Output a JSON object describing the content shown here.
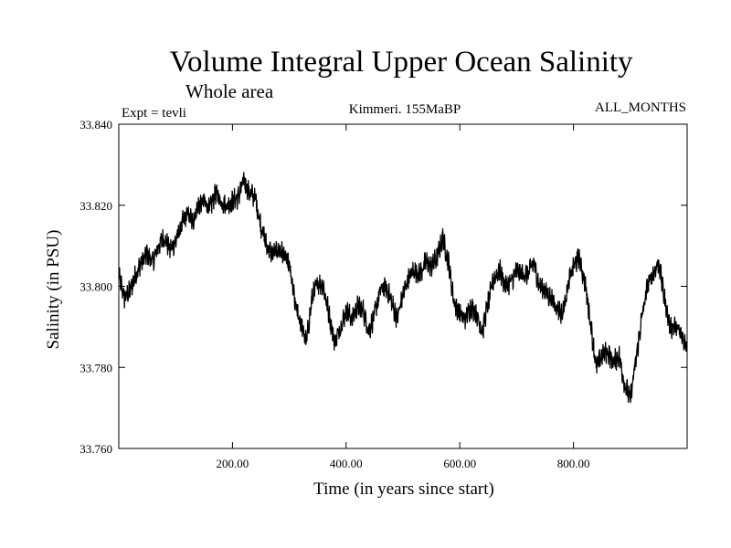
{
  "chart_data": {
    "type": "line",
    "title": "Volume Integral Upper Ocean Salinity",
    "subtitle": "Whole area",
    "header_left": "Expt = tevli",
    "header_center": "Kimmeri. 155MaBP",
    "header_right": "ALL_MONTHS",
    "xlabel": "Time (in years since start)",
    "ylabel": "Salinity (in PSU)",
    "xlim": [
      0,
      1000
    ],
    "ylim": [
      33.76,
      33.84
    ],
    "x_ticks": [
      {
        "value": 200,
        "label": "200.00"
      },
      {
        "value": 400,
        "label": "400.00"
      },
      {
        "value": 600,
        "label": "600.00"
      },
      {
        "value": 800,
        "label": "800.00"
      }
    ],
    "y_ticks": [
      {
        "value": 33.76,
        "label": "33.760"
      },
      {
        "value": 33.78,
        "label": "33.780"
      },
      {
        "value": 33.8,
        "label": "33.800"
      },
      {
        "value": 33.82,
        "label": "33.820"
      },
      {
        "value": 33.84,
        "label": "33.840"
      }
    ],
    "grid": false,
    "series": [
      {
        "name": "salinity",
        "color": "#000000",
        "x": [
          0,
          10,
          20,
          30,
          40,
          50,
          60,
          70,
          80,
          90,
          100,
          110,
          120,
          130,
          140,
          150,
          160,
          170,
          180,
          190,
          200,
          210,
          220,
          230,
          240,
          250,
          260,
          270,
          280,
          290,
          300,
          310,
          320,
          330,
          340,
          350,
          360,
          370,
          380,
          390,
          400,
          410,
          420,
          430,
          440,
          450,
          460,
          470,
          480,
          490,
          500,
          510,
          520,
          530,
          540,
          550,
          560,
          570,
          580,
          590,
          600,
          610,
          620,
          630,
          640,
          650,
          660,
          670,
          680,
          690,
          700,
          710,
          720,
          730,
          740,
          750,
          760,
          770,
          780,
          790,
          800,
          810,
          820,
          830,
          840,
          850,
          860,
          870,
          880,
          890,
          900,
          910,
          920,
          930,
          940,
          950,
          960,
          970,
          980,
          990,
          1000
        ],
        "values": [
          33.803,
          33.797,
          33.799,
          33.803,
          33.806,
          33.808,
          33.806,
          33.81,
          33.812,
          33.809,
          33.811,
          33.815,
          33.818,
          33.816,
          33.82,
          33.821,
          33.819,
          33.823,
          33.821,
          33.82,
          33.821,
          33.822,
          33.826,
          33.823,
          33.822,
          33.815,
          33.81,
          33.808,
          33.809,
          33.808,
          33.805,
          33.796,
          33.791,
          33.786,
          33.797,
          33.801,
          33.8,
          33.793,
          33.786,
          33.79,
          33.794,
          33.792,
          33.795,
          33.794,
          33.789,
          33.793,
          33.799,
          33.8,
          33.796,
          33.792,
          33.798,
          33.802,
          33.804,
          33.803,
          33.806,
          33.805,
          33.807,
          33.812,
          33.806,
          33.796,
          33.793,
          33.792,
          33.795,
          33.793,
          33.789,
          33.796,
          33.802,
          33.804,
          33.8,
          33.801,
          33.804,
          33.803,
          33.803,
          33.806,
          33.8,
          33.799,
          33.797,
          33.795,
          33.793,
          33.8,
          33.805,
          33.807,
          33.801,
          33.791,
          33.78,
          33.783,
          33.784,
          33.781,
          33.783,
          33.776,
          33.772,
          33.782,
          33.792,
          33.8,
          33.803,
          33.806,
          33.797,
          33.79,
          33.79,
          33.788,
          33.785
        ]
      }
    ]
  }
}
